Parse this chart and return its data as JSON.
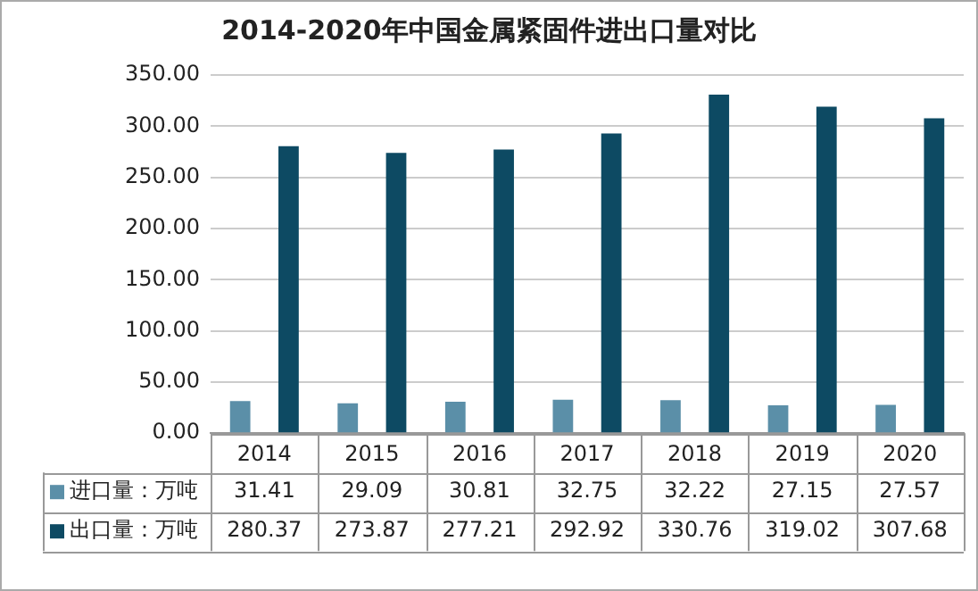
{
  "chart_data": {
    "type": "bar",
    "title": "2014-2020年中国金属紧固件进出口量对比",
    "categories": [
      "2014",
      "2015",
      "2016",
      "2017",
      "2018",
      "2019",
      "2020"
    ],
    "series": [
      {
        "name": "进口量：万吨",
        "color": "#5b8fa8",
        "values": [
          31.41,
          29.09,
          30.81,
          32.75,
          32.22,
          27.15,
          27.57
        ]
      },
      {
        "name": "出口量：万吨",
        "color": "#0d4a63",
        "values": [
          280.37,
          273.87,
          277.21,
          292.92,
          330.76,
          319.02,
          307.68
        ]
      }
    ],
    "ylim": [
      0,
      350
    ],
    "yticks": [
      {
        "value": 0,
        "label": "0.00"
      },
      {
        "value": 50,
        "label": "50.00"
      },
      {
        "value": 100,
        "label": "100.00"
      },
      {
        "value": 150,
        "label": "150.00"
      },
      {
        "value": 200,
        "label": "200.00"
      },
      {
        "value": 250,
        "label": "250.00"
      },
      {
        "value": 300,
        "label": "300.00"
      },
      {
        "value": 350,
        "label": "350.00"
      }
    ],
    "grid": "y",
    "legend": "bottom",
    "data_labels": true
  }
}
